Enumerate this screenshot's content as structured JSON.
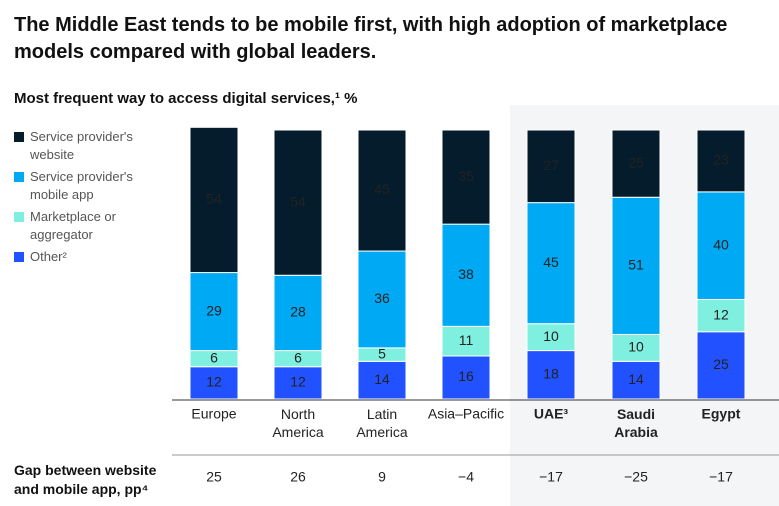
{
  "chart_data": {
    "type": "stacked_bar",
    "title": "The Middle East tends to be mobile first, with high adoption of marketplace models compared with global leaders.",
    "subtitle": "Most frequent way to access digital services,¹ %",
    "categories": [
      "Europe",
      "North America",
      "Latin America",
      "Asia–Pacific",
      "UAE³",
      "Saudi Arabia",
      "Egypt"
    ],
    "series": [
      {
        "name": "Other²",
        "color": "#2251ff",
        "values": [
          12,
          12,
          14,
          16,
          18,
          14,
          25
        ]
      },
      {
        "name": "Marketplace or aggregator",
        "color": "#7ff0e0",
        "values": [
          6,
          6,
          5,
          11,
          10,
          10,
          12
        ]
      },
      {
        "name": "Service provider's mobile app",
        "color": "#00a9f4",
        "values": [
          29,
          28,
          36,
          38,
          45,
          51,
          40
        ]
      },
      {
        "name": "Service provider's website",
        "color": "#051c2c",
        "values": [
          54,
          54,
          45,
          35,
          27,
          25,
          23
        ]
      }
    ],
    "ylim": [
      0,
      100
    ],
    "gap_row": {
      "label": "Gap between website and mobile app, pp⁴",
      "values": [
        25,
        26,
        9,
        -4,
        -17,
        -25,
        -17
      ],
      "value_labels": [
        "25",
        "26",
        "9",
        "−4",
        "−17",
        "−25",
        "−17"
      ]
    }
  }
}
